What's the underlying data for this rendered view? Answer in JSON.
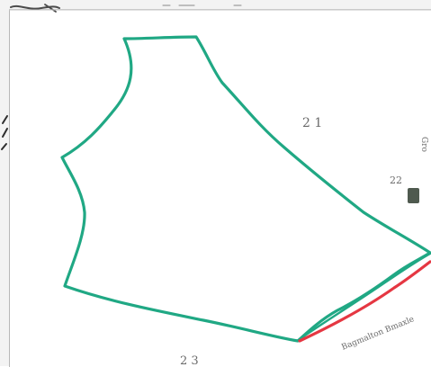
{
  "sheet": {
    "labels": {
      "plot_a": "2 1",
      "plot_b": "22",
      "plot_c": "2 3",
      "edge_note": "Bagmalton Bmaxle",
      "right_vertical_note": "Gro"
    },
    "colors": {
      "boundary": "#20a884",
      "highlight": "#e53742",
      "marker": "#4f5a4f",
      "ink": "#4b4b4b"
    }
  }
}
